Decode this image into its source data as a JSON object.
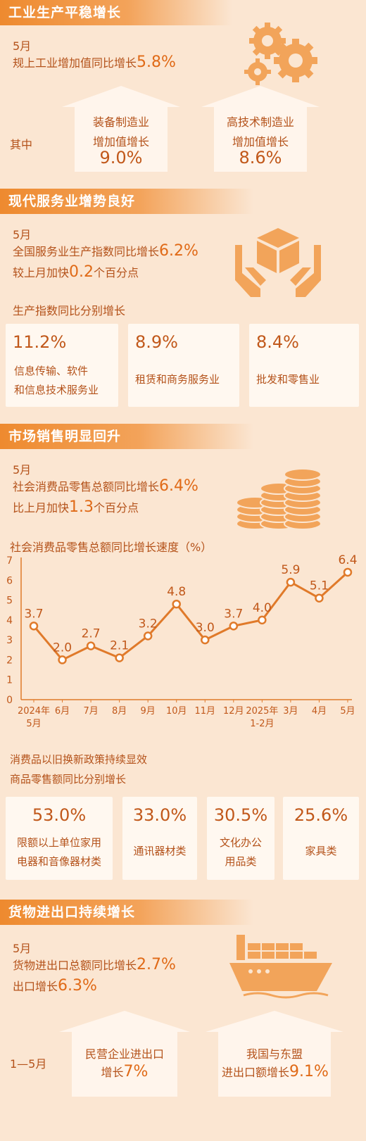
{
  "colors": {
    "background": "#fbe6d2",
    "accent": "#ee8a2f",
    "text": "#c1581a",
    "line": "#e07a2a"
  },
  "sec1": {
    "title": "工业生产平稳增长",
    "month": "5月",
    "headline_prefix": "规上工业增加值同比增长",
    "headline_value": "5.8%",
    "qizhong": "其中",
    "box1_line1": "装备制造业",
    "box1_line2": "增加值增长",
    "box1_value": "9.0%",
    "box2_line1": "高技术制造业",
    "box2_line2": "增加值增长",
    "box2_value": "8.6%",
    "icon": "gears-icon"
  },
  "sec2": {
    "title": "现代服务业增势良好",
    "month": "5月",
    "line1_prefix": "全国服务业生产指数同比增长",
    "line1_value": "6.2%",
    "line2_prefix": "较上月加快",
    "line2_value": "0.2",
    "line2_suffix": "个百分点",
    "sub": "生产指数同比分别增长",
    "cards": [
      {
        "pct": "11.2%",
        "label1": "信息传输、软件",
        "label2": "和信息技术服务业"
      },
      {
        "pct": "8.9%",
        "label1": "租赁和商务服务业",
        "label2": ""
      },
      {
        "pct": "8.4%",
        "label1": "批发和零售业",
        "label2": ""
      }
    ],
    "icon": "hands-box-icon"
  },
  "sec3": {
    "title": "市场销售明显回升",
    "month": "5月",
    "line1_prefix": "社会消费品零售总额同比增长",
    "line1_value": "6.4%",
    "line2_prefix": "比上月加快",
    "line2_value": "1.3",
    "line2_suffix": "个百分点",
    "chart_title": "社会消费品零售总额同比增长速度（%）",
    "policy1": "消费品以旧换新政策持续显效",
    "policy2": "商品零售额同比分别增长",
    "cards": [
      {
        "pct": "53.0%",
        "label1": "限额以上单位家用",
        "label2": "电器和音像器材类"
      },
      {
        "pct": "33.0%",
        "label1": "通讯器材类",
        "label2": ""
      },
      {
        "pct": "30.5%",
        "label1": "文化办公",
        "label2": "用品类"
      },
      {
        "pct": "25.6%",
        "label1": "家具类",
        "label2": ""
      }
    ],
    "icon": "coins-icon"
  },
  "chart_data": {
    "type": "line",
    "title": "社会消费品零售总额同比增长速度（%）",
    "categories": [
      "2024年5月",
      "6月",
      "7月",
      "8月",
      "9月",
      "10月",
      "11月",
      "12月",
      "2025年1-2月",
      "3月",
      "4月",
      "5月"
    ],
    "x_tick_line1": [
      "2024年",
      "6月",
      "7月",
      "8月",
      "9月",
      "10月",
      "11月",
      "12月",
      "2025年",
      "3月",
      "4月",
      "5月"
    ],
    "x_tick_line2": [
      "5月",
      "",
      "",
      "",
      "",
      "",
      "",
      "",
      "1-2月",
      "",
      "",
      ""
    ],
    "values": [
      3.7,
      2.0,
      2.7,
      2.1,
      3.2,
      4.8,
      3.0,
      3.7,
      4.0,
      5.9,
      5.1,
      6.4
    ],
    "value_labels": [
      "3.7",
      "2.0",
      "2.7",
      "2.1",
      "3.2",
      "4.8",
      "3.0",
      "3.7",
      "4.0",
      "5.9",
      "5.1",
      "6.4"
    ],
    "ylim": [
      0,
      7
    ],
    "yticks": [
      "0",
      "1",
      "2",
      "3",
      "4",
      "5",
      "6",
      "7"
    ],
    "grid": false
  },
  "sec4": {
    "title": "货物进出口持续增长",
    "month": "5月",
    "line1_prefix": "货物进出口总额同比增长",
    "line1_value": "2.7%",
    "line2_prefix": "出口增长",
    "line2_value": "6.3%",
    "period": "1—5月",
    "box1_line1": "民营企业进出口",
    "box1_line2_prefix": "增长",
    "box1_line2_value": "7%",
    "box2_line1": "我国与东盟",
    "box2_line2_prefix": "进出口额增长",
    "box2_line2_value": "9.1%",
    "icon": "cargo-ship-icon"
  }
}
